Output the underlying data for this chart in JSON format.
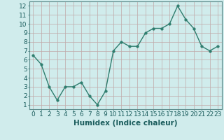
{
  "x": [
    0,
    1,
    2,
    3,
    4,
    5,
    6,
    7,
    8,
    9,
    10,
    11,
    12,
    13,
    14,
    15,
    16,
    17,
    18,
    19,
    20,
    21,
    22,
    23
  ],
  "y": [
    6.5,
    5.5,
    3.0,
    1.5,
    3.0,
    3.0,
    3.5,
    2.0,
    1.0,
    2.5,
    7.0,
    8.0,
    7.5,
    7.5,
    9.0,
    9.5,
    9.5,
    10.0,
    12.0,
    10.5,
    9.5,
    7.5,
    7.0,
    7.5
  ],
  "line_color": "#2e7d6e",
  "marker_color": "#2e7d6e",
  "bg_color": "#d0ecec",
  "grid_color": "#c0a8a8",
  "xlabel": "Humidex (Indice chaleur)",
  "xlim": [
    -0.5,
    23.5
  ],
  "ylim": [
    0.5,
    12.5
  ],
  "yticks": [
    1,
    2,
    3,
    4,
    5,
    6,
    7,
    8,
    9,
    10,
    11,
    12
  ],
  "xticks": [
    0,
    1,
    2,
    3,
    4,
    5,
    6,
    7,
    8,
    9,
    10,
    11,
    12,
    13,
    14,
    15,
    16,
    17,
    18,
    19,
    20,
    21,
    22,
    23
  ],
  "xlabel_fontsize": 7.5,
  "tick_fontsize": 6.5,
  "marker_size": 2.5,
  "line_width": 1.0
}
